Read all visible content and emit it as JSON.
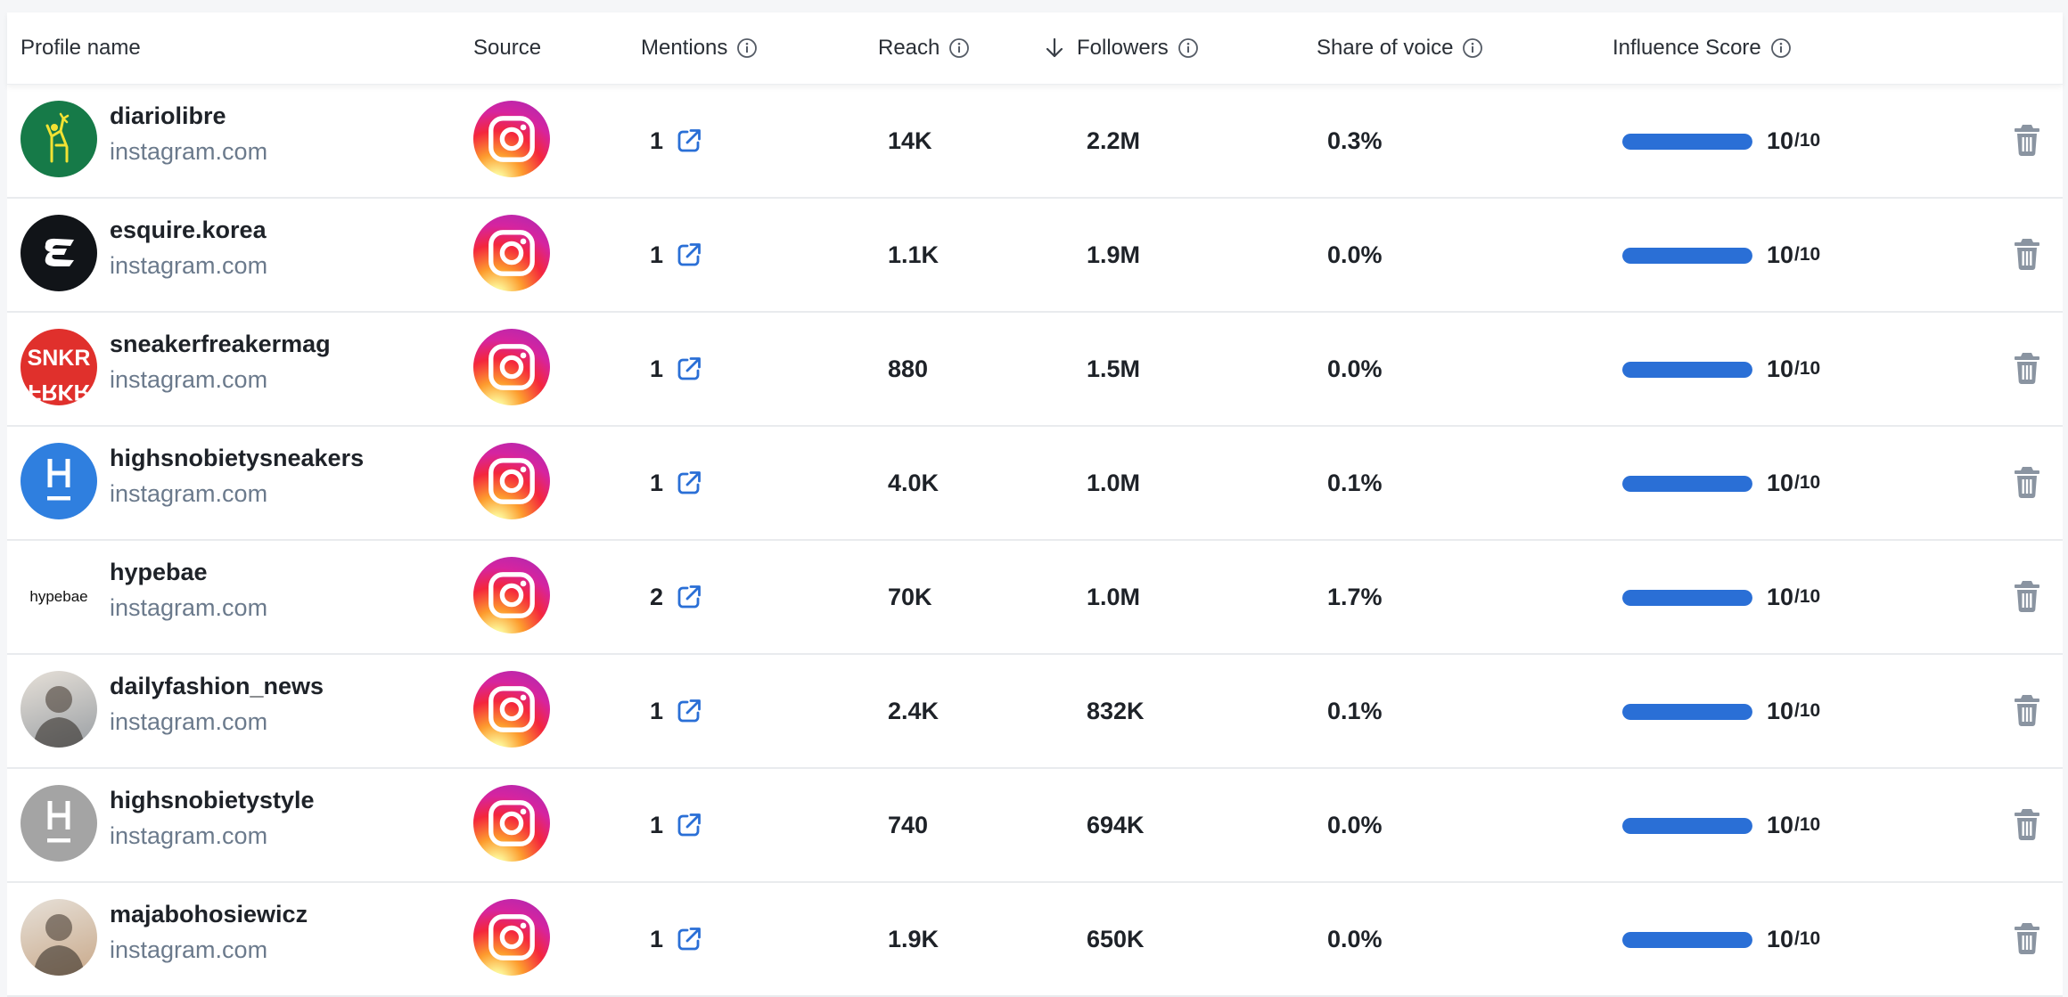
{
  "columns": {
    "profile_name": "Profile name",
    "source": "Source",
    "mentions": "Mentions",
    "reach": "Reach",
    "followers": "Followers",
    "share_of_voice": "Share of voice",
    "influence_score": "Influence Score"
  },
  "sort": {
    "column": "followers",
    "direction": "descending",
    "icon": "arrow-down-icon"
  },
  "colors": {
    "accent": "#2a6fd6",
    "domain_text": "#6b7a8c",
    "trash": "#8a94a1"
  },
  "rows": [
    {
      "name": "diariolibre",
      "domain": "instagram.com",
      "avatar": "diariolibre-logo",
      "avatar_bg": "#167a48",
      "source_icon": "instagram-icon",
      "mentions": "1",
      "reach": "14K",
      "followers": "2.2M",
      "share": "0.3%",
      "score": "10",
      "score_max": "/10",
      "score_fraction": 1.0
    },
    {
      "name": "esquire.korea",
      "domain": "instagram.com",
      "avatar": "esquire-logo",
      "avatar_bg": "#111418",
      "source_icon": "instagram-icon",
      "mentions": "1",
      "reach": "1.1K",
      "followers": "1.9M",
      "share": "0.0%",
      "score": "10",
      "score_max": "/10",
      "score_fraction": 1.0
    },
    {
      "name": "sneakerfreakermag",
      "domain": "instagram.com",
      "avatar": "snkr-logo",
      "avatar_bg": "#e0302c",
      "source_icon": "instagram-icon",
      "mentions": "1",
      "reach": "880",
      "followers": "1.5M",
      "share": "0.0%",
      "score": "10",
      "score_max": "/10",
      "score_fraction": 1.0
    },
    {
      "name": "highsnobietysneakers",
      "domain": "instagram.com",
      "avatar": "highsnobiety-logo",
      "avatar_bg": "#2f7fdf",
      "source_icon": "instagram-icon",
      "mentions": "1",
      "reach": "4.0K",
      "followers": "1.0M",
      "share": "0.1%",
      "score": "10",
      "score_max": "/10",
      "score_fraction": 1.0
    },
    {
      "name": "hypebae",
      "domain": "instagram.com",
      "avatar": "hypebae-logo",
      "avatar_bg": "#ffffff",
      "avatar_text": "hypebae",
      "source_icon": "instagram-icon",
      "mentions": "2",
      "reach": "70K",
      "followers": "1.0M",
      "share": "1.7%",
      "score": "10",
      "score_max": "/10",
      "score_fraction": 1.0
    },
    {
      "name": "dailyfashion_news",
      "domain": "instagram.com",
      "avatar": "person-photo",
      "avatar_bg": "#9a9fa4",
      "source_icon": "instagram-icon",
      "mentions": "1",
      "reach": "2.4K",
      "followers": "832K",
      "share": "0.1%",
      "score": "10",
      "score_max": "/10",
      "score_fraction": 1.0
    },
    {
      "name": "highsnobietystyle",
      "domain": "instagram.com",
      "avatar": "highsnobiety-logo-grey",
      "avatar_bg": "#a4a4a4",
      "source_icon": "instagram-icon",
      "mentions": "1",
      "reach": "740",
      "followers": "694K",
      "share": "0.0%",
      "score": "10",
      "score_max": "/10",
      "score_fraction": 1.0
    },
    {
      "name": "majabohosiewicz",
      "domain": "instagram.com",
      "avatar": "person-photo",
      "avatar_bg": "#c9a98a",
      "source_icon": "instagram-icon",
      "mentions": "1",
      "reach": "1.9K",
      "followers": "650K",
      "share": "0.0%",
      "score": "10",
      "score_max": "/10",
      "score_fraction": 1.0
    }
  ]
}
